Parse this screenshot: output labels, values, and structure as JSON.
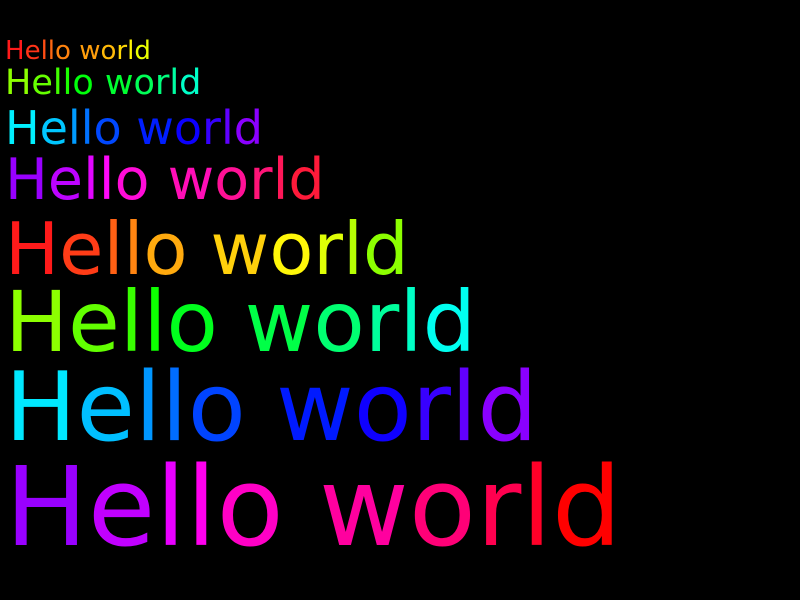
{
  "lines": [
    {
      "text": "Hello world",
      "start_color": "#ff1a1a",
      "end_color": "#eaff00"
    },
    {
      "text": "Hello world",
      "start_color": "#8cff00",
      "end_color": "#00ffc8"
    },
    {
      "text": "Hello world",
      "start_color": "#00f0ff",
      "end_color": "#8a00ff"
    },
    {
      "text": "Hello world",
      "start_color": "#9900ff",
      "end_color": "#ff1a3a"
    },
    {
      "text": "Hello world",
      "start_color": "#ff1a1a",
      "end_color": "#8cff00"
    },
    {
      "text": "Hello world",
      "start_color": "#8cff00",
      "end_color": "#00fff0"
    },
    {
      "text": "Hello world",
      "start_color": "#00e8ff",
      "end_color": "#8a00ff"
    },
    {
      "text": "Hello world",
      "start_color": "#9900ff",
      "end_color": "#ff0000"
    }
  ]
}
